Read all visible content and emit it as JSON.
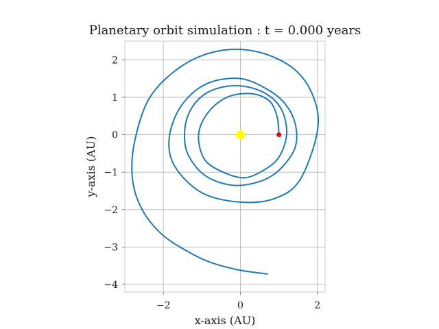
{
  "chart_data": {
    "type": "line",
    "title": "Planetary orbit simulation : t = 0.000 years",
    "xlabel": "x-axis (AU)",
    "ylabel": "y-axis (AU)",
    "xlim": [
      -3.0,
      2.2
    ],
    "ylim": [
      -4.2,
      2.5
    ],
    "xticks": [
      -2,
      0,
      2
    ],
    "xtick_labels": [
      "−2",
      "0",
      "2"
    ],
    "yticks": [
      2,
      1,
      0,
      -1,
      -2,
      -3,
      -4
    ],
    "ytick_labels": [
      "2",
      "1",
      "0",
      "−1",
      "−2",
      "−3",
      "−4"
    ],
    "grid": true,
    "series": [
      {
        "color": "#1f77b4",
        "x": [
          1.0,
          0.96,
          0.8,
          0.5,
          0.1,
          -0.35,
          -0.75,
          -1.03,
          -1.08,
          -0.9,
          -0.45,
          0.1,
          0.6,
          1.0,
          1.2,
          1.1,
          0.8,
          0.3,
          -0.3,
          -0.9,
          -1.3,
          -1.45,
          -1.35,
          -0.9,
          -0.2,
          0.5,
          1.0,
          1.4,
          1.45,
          1.25,
          0.8,
          0.0,
          -0.9,
          -1.55,
          -1.85,
          -1.7,
          -1.0,
          0.0,
          0.9,
          1.55,
          2.0,
          1.9,
          1.4,
          0.5,
          -0.5,
          -1.5,
          -2.35,
          -2.75,
          -2.8,
          -2.55,
          -2.05,
          -1.4,
          -0.8,
          -0.1,
          0.4,
          0.7
        ],
        "y": [
          0.0,
          0.45,
          0.85,
          1.05,
          1.1,
          1.0,
          0.7,
          0.25,
          -0.2,
          -0.7,
          -1.0,
          -1.15,
          -0.95,
          -0.6,
          0.0,
          0.6,
          1.0,
          1.25,
          1.3,
          1.1,
          0.65,
          0.05,
          -0.55,
          -1.1,
          -1.35,
          -1.25,
          -0.95,
          -0.4,
          0.15,
          0.7,
          1.15,
          1.5,
          1.35,
          0.75,
          -0.1,
          -0.85,
          -1.55,
          -1.8,
          -1.7,
          -1.2,
          0.1,
          1.0,
          1.75,
          2.2,
          2.25,
          1.85,
          1.0,
          -0.2,
          -1.2,
          -2.0,
          -2.65,
          -3.1,
          -3.4,
          -3.6,
          -3.68,
          -3.72
        ]
      }
    ],
    "markers": [
      {
        "label": "sun",
        "x": 0.0,
        "y": 0.0,
        "color": "#ffff00"
      },
      {
        "label": "planet",
        "x": 1.0,
        "y": 0.0,
        "color": "#ff0000"
      }
    ]
  }
}
